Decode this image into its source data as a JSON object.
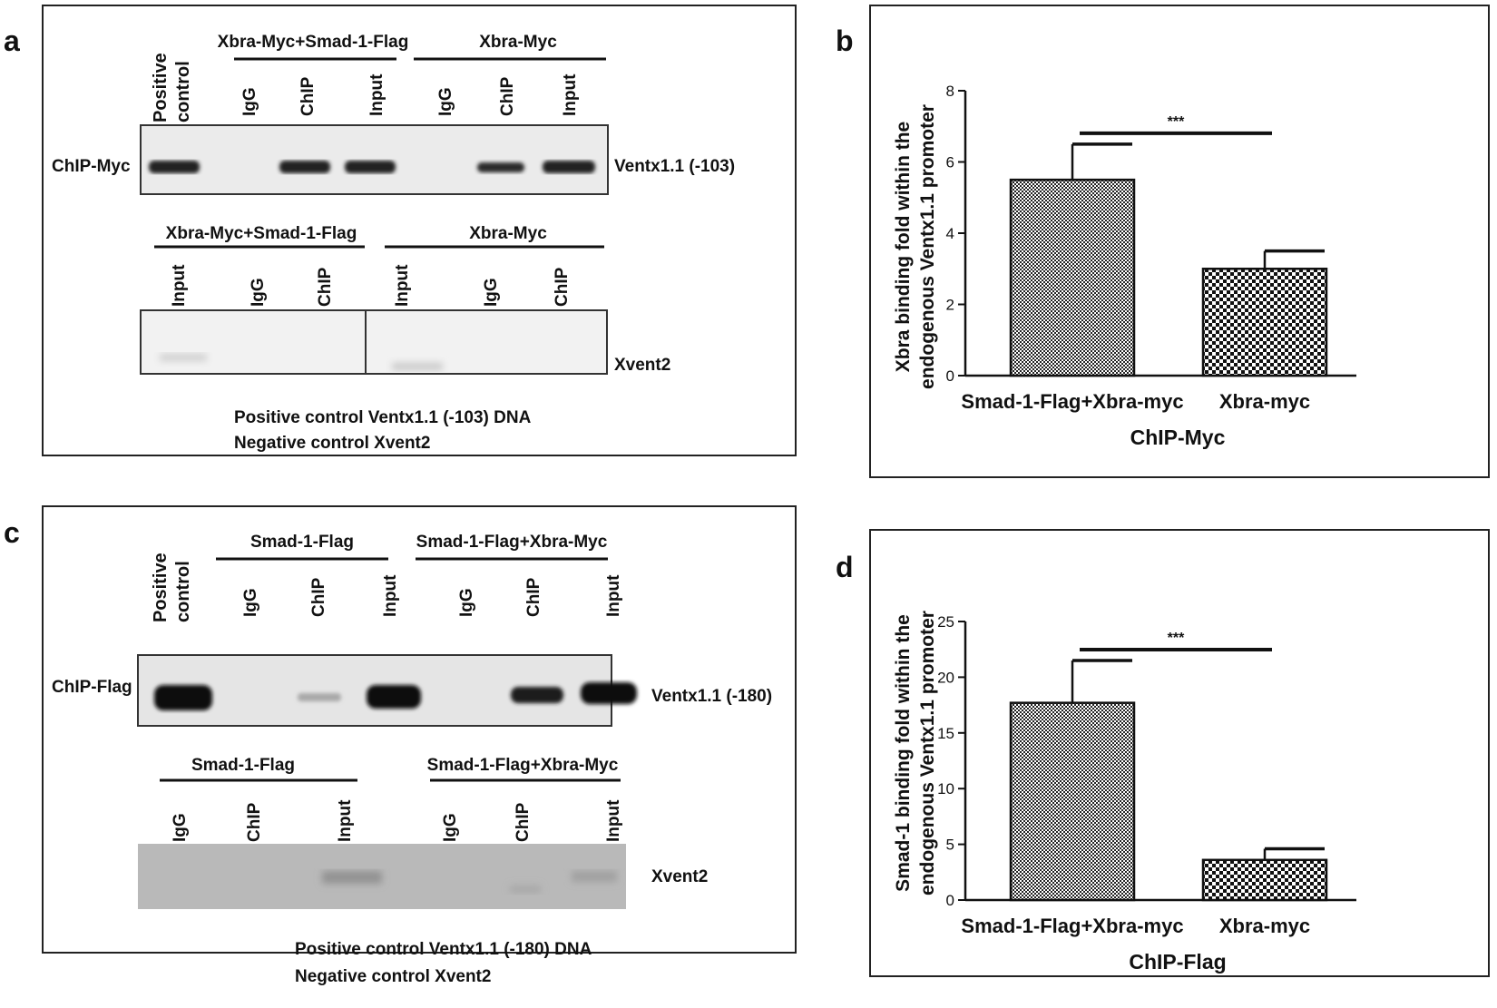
{
  "panels": {
    "a": {
      "letter": "a",
      "headers": {
        "positive": [
          "Positive",
          "control"
        ],
        "group1": "Xbra-Myc+Smad-1-Flag",
        "group2": "Xbra-Myc",
        "group3": "Xbra-Myc+Smad-1-Flag",
        "group4": "Xbra-Myc"
      },
      "lanes_top": [
        "IgG",
        "ChIP",
        "Input",
        "IgG",
        "ChIP",
        "Input"
      ],
      "lanes_bottom": [
        "Input",
        "IgG",
        "ChIP",
        "Input",
        "IgG",
        "ChIP"
      ],
      "row_label": "ChIP-Myc",
      "gene_top": "Ventx1.1 (-103)",
      "gene_bottom": "Xvent2",
      "notes": [
        "Positive control Ventx1.1 (-103) DNA",
        "Negative control Xvent2"
      ]
    },
    "c": {
      "letter": "c",
      "headers": {
        "positive": [
          "Positive",
          "control"
        ],
        "group1": "Smad-1-Flag",
        "group2": "Smad-1-Flag+Xbra-Myc",
        "group3": "Smad-1-Flag",
        "group4": "Smad-1-Flag+Xbra-Myc"
      },
      "lanes_top": [
        "IgG",
        "ChIP",
        "Input",
        "IgG",
        "ChIP",
        "Input"
      ],
      "lanes_bottom": [
        "IgG",
        "ChIP",
        "Input",
        "IgG",
        "ChIP",
        "Input"
      ],
      "row_label": "ChIP-Flag",
      "gene_top": "Ventx1.1 (-180)",
      "gene_bottom": "Xvent2",
      "notes": [
        "Positive control Ventx1.1 (-180) DNA",
        "Negative control Xvent2"
      ]
    },
    "b": {
      "letter": "b"
    },
    "d": {
      "letter": "d"
    }
  },
  "chart_data": [
    {
      "panel": "b",
      "type": "bar",
      "categories": [
        "Smad-1-Flag+Xbra-myc",
        "Xbra-myc"
      ],
      "values": [
        5.5,
        3.0
      ],
      "errors": [
        1.0,
        0.5
      ],
      "ylabel": [
        "Xbra binding fold within the",
        "endogenous Ventx1.1 promoter"
      ],
      "xlabel": "ChIP-Myc",
      "ylim": [
        0,
        8
      ],
      "yticks": [
        "0",
        "2",
        "4",
        "6",
        "8"
      ],
      "significance": "***"
    },
    {
      "panel": "d",
      "type": "bar",
      "categories": [
        "Smad-1-Flag+Xbra-myc",
        "Xbra-myc"
      ],
      "values": [
        17.7,
        3.6
      ],
      "errors": [
        3.8,
        1.0
      ],
      "ylabel": [
        "Smad-1 binding fold within the",
        "endogenous Ventx1.1 promoter"
      ],
      "xlabel": "ChIP-Flag",
      "ylim": [
        0,
        25
      ],
      "yticks": [
        "0",
        "5",
        "10",
        "15",
        "20",
        "25"
      ],
      "significance": "***"
    }
  ]
}
